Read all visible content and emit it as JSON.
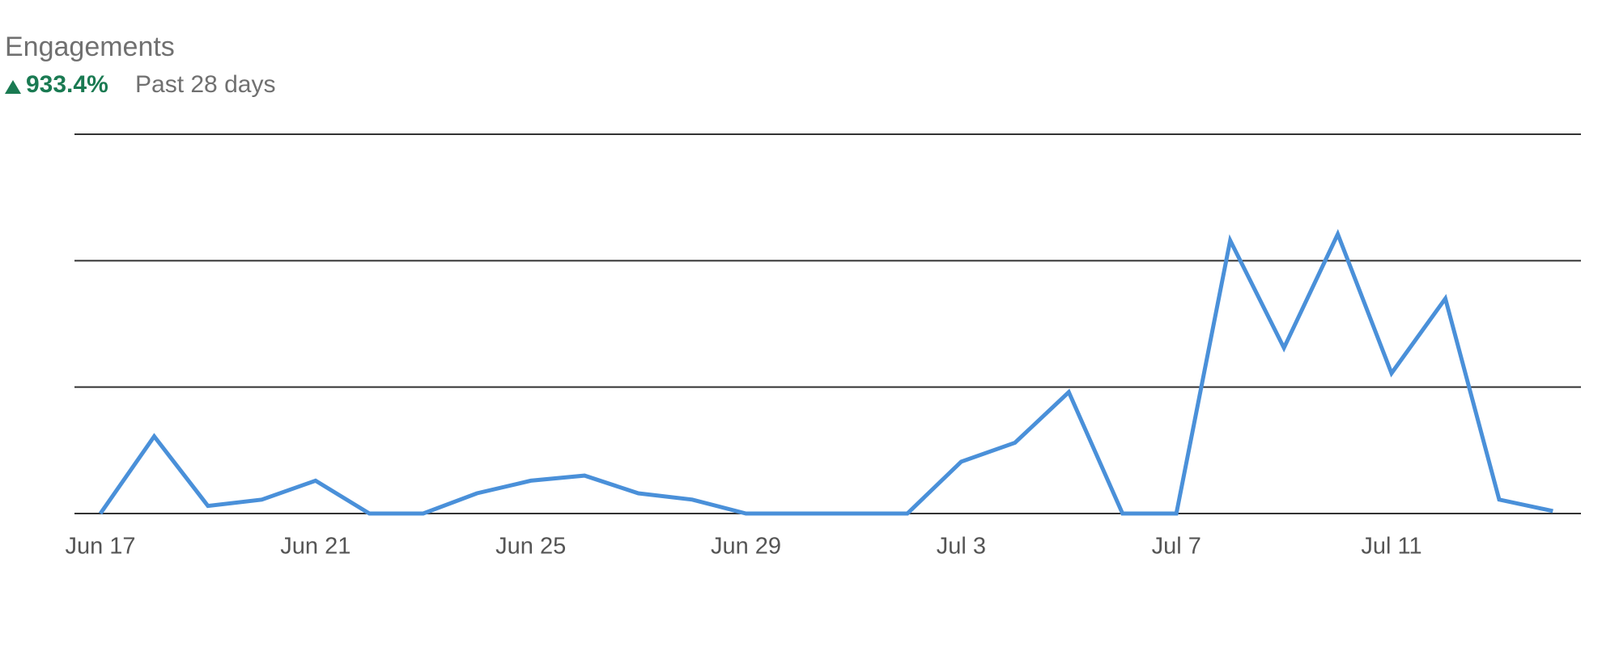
{
  "chart_data": {
    "type": "line",
    "title": "Engagements",
    "change": "933.4%",
    "period": "Past 28 days",
    "categories": [
      "Jun 17",
      null,
      null,
      null,
      "Jun 21",
      null,
      null,
      null,
      "Jun 25",
      null,
      null,
      null,
      "Jun 29",
      null,
      null,
      null,
      "Jul 3",
      null,
      null,
      null,
      "Jul 7",
      null,
      null,
      null,
      "Jul 11",
      null,
      null,
      null
    ],
    "series": [
      {
        "color": "#4a90d9",
        "values": [
          0,
          0.61,
          0.06,
          0.11,
          0.26,
          0,
          0,
          0.16,
          0.26,
          0.3,
          0.16,
          0.11,
          0,
          0,
          0,
          0,
          0.41,
          0.56,
          0.96,
          0,
          0,
          2.16,
          1.31,
          2.21,
          1.11,
          1.7,
          0.11,
          0.02
        ]
      }
    ],
    "ylim": [
      0,
      3
    ],
    "yticks": [
      0,
      1,
      2,
      3
    ],
    "grid": true
  }
}
